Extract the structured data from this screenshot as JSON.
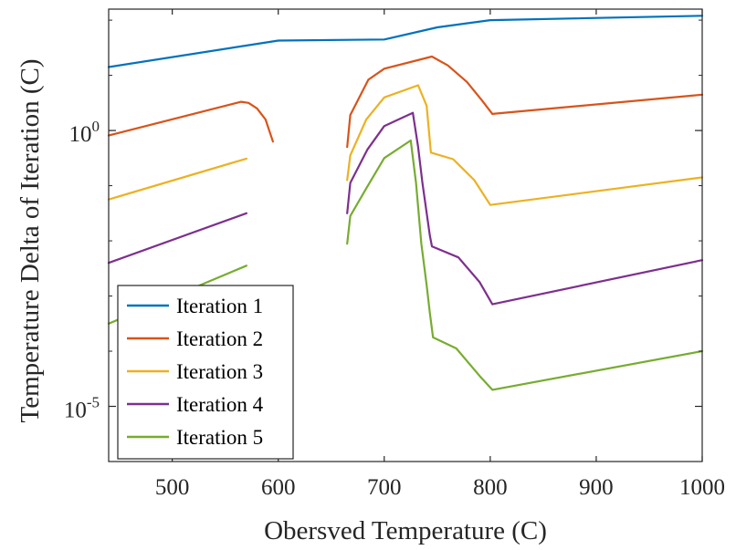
{
  "chart_data": {
    "type": "line",
    "xlabel": "Obersved Temperature (C)",
    "ylabel": "Temperature Delta of Iteration (C)",
    "xlim": [
      440,
      1000
    ],
    "ylim_log10": [
      -6,
      2.2
    ],
    "y_scale": "log",
    "x_ticks": [
      "500",
      "600",
      "700",
      "800",
      "900",
      "1000"
    ],
    "y_ticks": [
      {
        "base": "10",
        "exp": "0",
        "log10": 0
      },
      {
        "base": "10",
        "exp": "-5",
        "log10": -5
      }
    ],
    "grid": false,
    "legend_placement": "bottom-left",
    "series": [
      {
        "name": "Iteration 1",
        "color": "#0072BD",
        "segments": [
          [
            [
              440,
              1.15
            ],
            [
              600,
              1.63
            ],
            [
              700,
              1.65
            ],
            [
              750,
              1.87
            ],
            [
              800,
              2.0
            ],
            [
              1000,
              2.08
            ]
          ]
        ]
      },
      {
        "name": "Iteration 2",
        "color": "#D95319",
        "segments": [
          [
            [
              440,
              -0.09
            ],
            [
              565,
              0.52
            ],
            [
              572,
              0.5
            ],
            [
              580,
              0.4
            ],
            [
              588,
              0.2
            ],
            [
              595,
              -0.2
            ]
          ],
          [
            [
              665,
              -0.3
            ],
            [
              668,
              0.28
            ],
            [
              685,
              0.92
            ],
            [
              700,
              1.12
            ],
            [
              745,
              1.34
            ],
            [
              760,
              1.18
            ],
            [
              778,
              0.88
            ],
            [
              792,
              0.55
            ],
            [
              802,
              0.3
            ],
            [
              1000,
              0.65
            ]
          ]
        ]
      },
      {
        "name": "Iteration 3",
        "color": "#EDB120",
        "segments": [
          [
            [
              440,
              -1.25
            ],
            [
              570,
              -0.51
            ]
          ],
          [
            [
              665,
              -0.9
            ],
            [
              668,
              -0.45
            ],
            [
              683,
              0.2
            ],
            [
              700,
              0.6
            ],
            [
              732,
              0.82
            ],
            [
              740,
              0.45
            ],
            [
              744,
              -0.4
            ],
            [
              765,
              -0.52
            ],
            [
              785,
              -0.9
            ],
            [
              800,
              -1.35
            ],
            [
              1000,
              -0.85
            ]
          ]
        ]
      },
      {
        "name": "Iteration 4",
        "color": "#7E2F8E",
        "segments": [
          [
            [
              440,
              -2.4
            ],
            [
              570,
              -1.5
            ]
          ],
          [
            [
              665,
              -1.5
            ],
            [
              668,
              -0.95
            ],
            [
              684,
              -0.35
            ],
            [
              700,
              0.08
            ],
            [
              727,
              0.32
            ],
            [
              732,
              -0.3
            ],
            [
              736,
              -0.95
            ],
            [
              743,
              -1.9
            ],
            [
              745,
              -2.1
            ],
            [
              770,
              -2.3
            ],
            [
              790,
              -2.75
            ],
            [
              802,
              -3.15
            ],
            [
              1000,
              -2.35
            ]
          ]
        ]
      },
      {
        "name": "Iteration 5",
        "color": "#77AC30",
        "segments": [
          [
            [
              440,
              -3.5
            ],
            [
              570,
              -2.45
            ]
          ],
          [
            [
              665,
              -2.05
            ],
            [
              668,
              -1.55
            ],
            [
              683,
              -1.05
            ],
            [
              700,
              -0.5
            ],
            [
              725,
              -0.18
            ],
            [
              730,
              -0.95
            ],
            [
              735,
              -2.05
            ],
            [
              740,
              -2.8
            ],
            [
              743,
              -3.3
            ],
            [
              746,
              -3.75
            ],
            [
              768,
              -3.95
            ],
            [
              790,
              -4.45
            ],
            [
              802,
              -4.7
            ],
            [
              1000,
              -4.0
            ]
          ]
        ]
      }
    ]
  }
}
